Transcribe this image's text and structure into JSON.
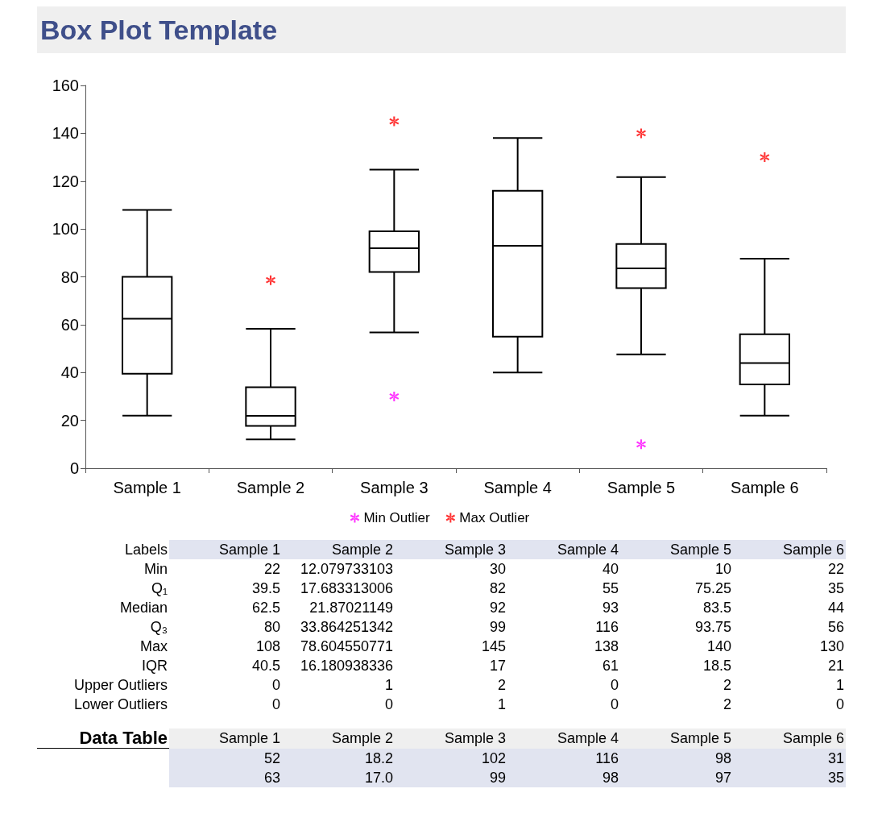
{
  "chart_data": [
    {
      "type": "box",
      "title": "Box Plot Template",
      "categories": [
        "Sample 1",
        "Sample 2",
        "Sample 3",
        "Sample 4",
        "Sample 5",
        "Sample 6"
      ],
      "ylim": [
        0,
        160
      ],
      "yticks": [
        0,
        20,
        40,
        60,
        80,
        100,
        120,
        140,
        160
      ],
      "grid": false,
      "legend": "bottom",
      "marker": "cross",
      "series": [
        {
          "type": "box",
          "color": "#000000",
          "boxes": [
            {
              "low": 22,
              "q1": 39.5,
              "median": 62.5,
              "q3": 80,
              "high": 108
            },
            {
              "low": 12.079733103,
              "q1": 17.683313006,
              "median": 21.87021149,
              "q3": 33.864251342,
              "high": 58.3
            },
            {
              "low": 56.8,
              "q1": 82,
              "median": 92,
              "q3": 99,
              "high": 124.8
            },
            {
              "low": 40,
              "q1": 55,
              "median": 93,
              "q3": 116,
              "high": 138
            },
            {
              "low": 47.6,
              "q1": 75.25,
              "median": 83.5,
              "q3": 93.75,
              "high": 121.7
            },
            {
              "low": 22,
              "q1": 35,
              "median": 44,
              "q3": 56,
              "high": 87.6
            }
          ]
        },
        {
          "type": "scatter",
          "name": "Min Outlier",
          "color": "#ff00ff",
          "x": [
            "Sample 3",
            "Sample 5"
          ],
          "values": [
            30,
            10
          ]
        },
        {
          "type": "scatter",
          "name": "Max Outlier",
          "color": "#ff0000",
          "x": [
            "Sample 2",
            "Sample 3",
            "Sample 5",
            "Sample 6"
          ],
          "values": [
            78.6,
            145,
            140,
            130
          ]
        }
      ]
    },
    {
      "type": "other",
      "ylabel": "Labels",
      "categories": [
        "Sample 1",
        "Sample 2",
        "Sample 3",
        "Sample 4",
        "Sample 5",
        "Sample 6"
      ],
      "y_categories": [
        "Min",
        "Q₁",
        "Median",
        "Q₃",
        "Max",
        "IQR",
        "Upper Outliers",
        "Lower Outliers"
      ],
      "cell_labels": [
        [
          "22",
          "12.079733103",
          "30",
          "40",
          "10",
          "22"
        ],
        [
          "39.5",
          "17.683313006",
          "82",
          "55",
          "75.25",
          "35"
        ],
        [
          "62.5",
          "21.87021149",
          "92",
          "93",
          "83.5",
          "44"
        ],
        [
          "80",
          "33.864251342",
          "99",
          "116",
          "93.75",
          "56"
        ],
        [
          "108",
          "78.604550771",
          "145",
          "138",
          "140",
          "130"
        ],
        [
          "40.5",
          "16.180938336",
          "17",
          "61",
          "18.5",
          "21"
        ],
        [
          "0",
          "1",
          "2",
          "0",
          "2",
          "1"
        ],
        [
          "0",
          "0",
          "1",
          "0",
          "2",
          "0"
        ]
      ]
    },
    {
      "type": "other",
      "title": "Data Table",
      "categories": [
        "Sample 1",
        "Sample 2",
        "Sample 3",
        "Sample 4",
        "Sample 5",
        "Sample 6"
      ],
      "y_categories": [
        null,
        null
      ],
      "cell_labels": [
        [
          "52",
          "18.2",
          "102",
          "116",
          "98",
          "31"
        ],
        [
          "63",
          "17.0",
          "99",
          "98",
          "97",
          "35"
        ]
      ]
    }
  ]
}
